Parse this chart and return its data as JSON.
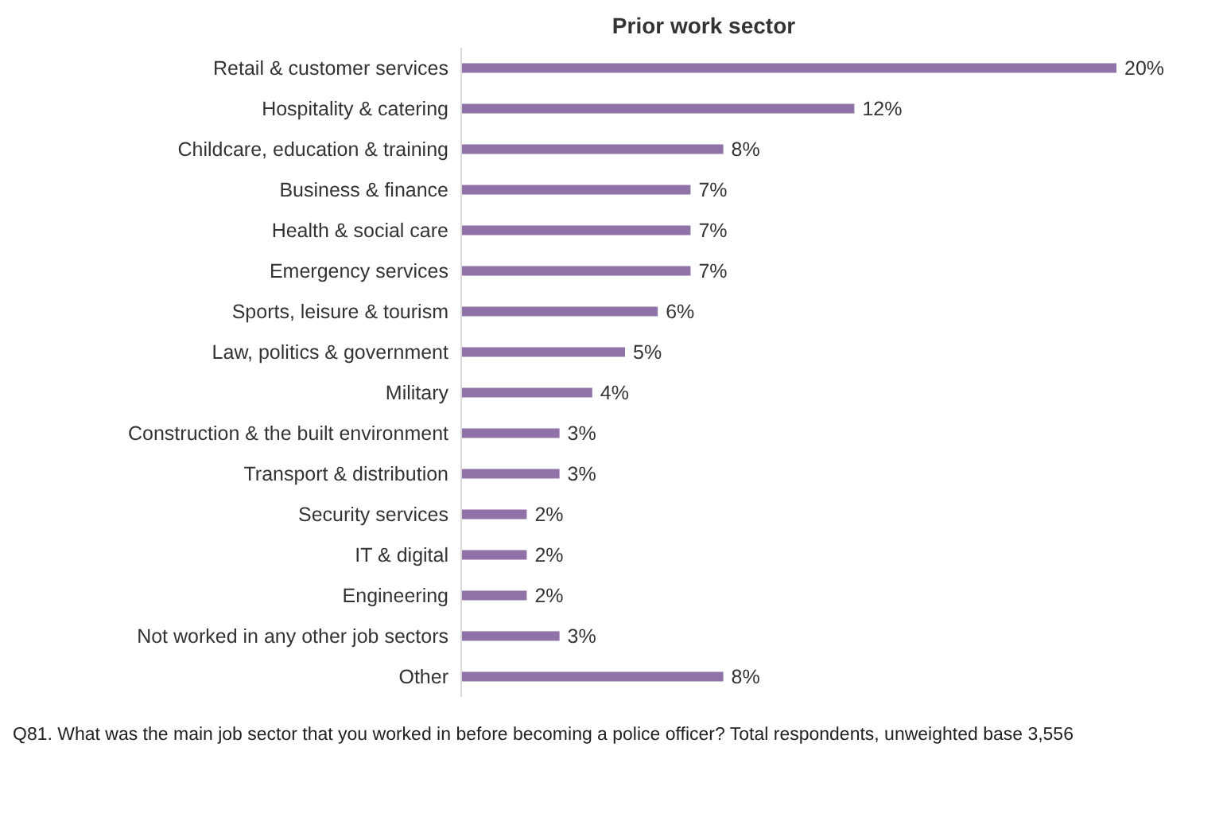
{
  "chart_data": {
    "type": "bar",
    "orientation": "horizontal",
    "title": "Prior work sector",
    "categories": [
      "Retail & customer services",
      "Hospitality & catering",
      "Childcare, education & training",
      "Business & finance",
      "Health & social care",
      "Emergency services",
      "Sports, leisure & tourism",
      "Law, politics & government",
      "Military",
      "Construction & the built environment",
      "Transport & distribution",
      "Security services",
      "IT & digital",
      "Engineering",
      "Not worked in any other job sectors",
      "Other"
    ],
    "values": [
      20,
      12,
      8,
      7,
      7,
      7,
      6,
      5,
      4,
      3,
      3,
      2,
      2,
      2,
      3,
      8
    ],
    "value_labels": [
      "20%",
      "12%",
      "8%",
      "7%",
      "7%",
      "7%",
      "6%",
      "5%",
      "4%",
      "3%",
      "3%",
      "2%",
      "2%",
      "2%",
      "3%",
      "8%"
    ],
    "color": "#8e72a8",
    "grid": false,
    "annotations": [
      "Q81. What was the main job sector that you worked in before becoming a police officer? Total respondents, unweighted base 3,556"
    ]
  }
}
